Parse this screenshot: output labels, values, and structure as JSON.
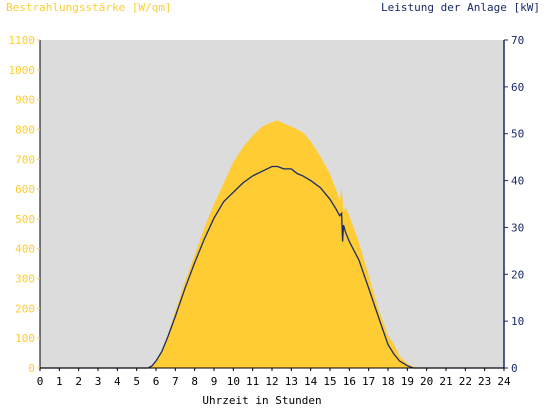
{
  "chart_data": {
    "type": "area",
    "title": "",
    "xlabel": "Uhrzeit in Stunden",
    "ylabel_left": "Bestrahlungsstärke [W/qm]",
    "ylabel_right": "Leistung der Anlage [kW]",
    "xlim": [
      0,
      24
    ],
    "ylim_left": [
      0,
      1100
    ],
    "ylim_right": [
      0,
      70
    ],
    "x_ticks": [
      "0",
      "1",
      "2",
      "3",
      "4",
      "5",
      "6",
      "7",
      "8",
      "9",
      "10",
      "11",
      "12",
      "13",
      "14",
      "15",
      "16",
      "17",
      "18",
      "19",
      "20",
      "21",
      "22",
      "23",
      "24"
    ],
    "y_left_ticks": [
      "0",
      "100",
      "200",
      "300",
      "400",
      "500",
      "600",
      "700",
      "800",
      "900",
      "1000",
      "1100"
    ],
    "y_right_ticks": [
      "0",
      "10",
      "20",
      "30",
      "40",
      "50",
      "60",
      "70"
    ],
    "grid": false,
    "colors": {
      "irradiance": "#ffcc33",
      "power": "#1a2a6c",
      "plot_background": "#dcdcdc",
      "left_axis_text": "#ffcc33",
      "right_axis_text": "#1a2a6c",
      "bottom_axis_text": "#000000"
    },
    "series": [
      {
        "axis": "left",
        "x": [
          0,
          5.5,
          5.8,
          6.0,
          6.3,
          6.6,
          7.0,
          7.5,
          8.0,
          8.5,
          9.0,
          9.5,
          10.0,
          10.5,
          11.0,
          11.5,
          12.0,
          12.3,
          12.6,
          13.0,
          13.3,
          13.6,
          14.0,
          14.5,
          15.0,
          15.3,
          15.5,
          15.6,
          15.7,
          15.8,
          16.0,
          16.5,
          17.0,
          17.5,
          18.0,
          18.3,
          18.6,
          19.0,
          19.3,
          19.6,
          20.0,
          24
        ],
        "values": [
          0,
          0,
          10,
          25,
          60,
          110,
          190,
          290,
          380,
          470,
          550,
          620,
          690,
          740,
          780,
          810,
          825,
          830,
          820,
          810,
          800,
          790,
          760,
          710,
          650,
          600,
          560,
          610,
          520,
          540,
          510,
          420,
          310,
          200,
          110,
          80,
          40,
          15,
          5,
          0,
          0,
          0
        ]
      },
      {
        "axis": "right",
        "x": [
          0,
          5.6,
          5.8,
          6.0,
          6.3,
          6.6,
          7.0,
          7.5,
          8.0,
          8.5,
          9.0,
          9.5,
          10.0,
          10.5,
          11.0,
          11.5,
          12.0,
          12.3,
          12.6,
          13.0,
          13.3,
          13.6,
          14.0,
          14.5,
          15.0,
          15.3,
          15.5,
          15.6,
          15.65,
          15.7,
          15.8,
          16.0,
          16.5,
          17.0,
          17.5,
          18.0,
          18.3,
          18.6,
          19.0,
          19.3,
          19.6,
          24
        ],
        "values": [
          0,
          0,
          0.5,
          1.5,
          3.5,
          6.5,
          11,
          17,
          22.5,
          27.5,
          32,
          35.5,
          37.5,
          39.5,
          41,
          42,
          43,
          43,
          42.5,
          42.5,
          41.5,
          41,
          40,
          38.5,
          36,
          34,
          32.5,
          33,
          27,
          30.5,
          29,
          27,
          23,
          17,
          11,
          5,
          3,
          1.5,
          0.5,
          0,
          0,
          0
        ]
      }
    ]
  }
}
